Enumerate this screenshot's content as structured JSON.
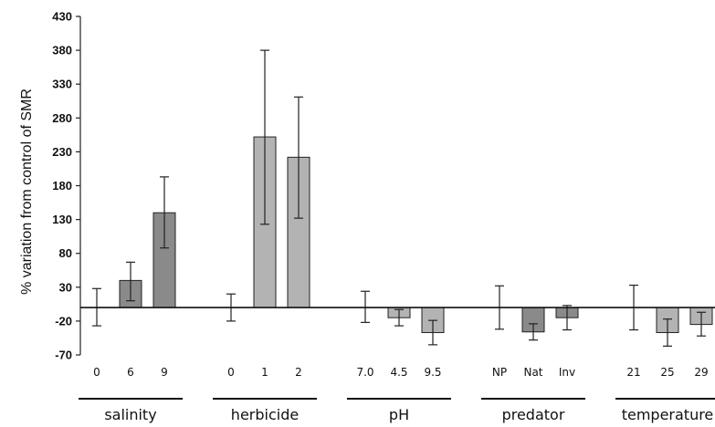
{
  "chart_data": {
    "type": "bar",
    "title": "",
    "ylabel": "% variation from control of SMR",
    "xlabel": "",
    "ylim": [
      -70,
      430
    ],
    "yticks": [
      430,
      380,
      330,
      280,
      230,
      180,
      130,
      80,
      30,
      -20,
      -70
    ],
    "baseline": 0,
    "grid": false,
    "legend": "none",
    "colors": {
      "white": "#ffffff",
      "light": "#b3b3b3",
      "dark": "#8a8a8a",
      "stroke": "#222222"
    },
    "groups": [
      {
        "name": "salinity",
        "bars": [
          {
            "label": "0",
            "value": 0,
            "err_low": -27,
            "err_high": 28,
            "fill": "white"
          },
          {
            "label": "6",
            "value": 40,
            "err_low": 10,
            "err_high": 67,
            "fill": "dark"
          },
          {
            "label": "9",
            "value": 140,
            "err_low": 88,
            "err_high": 193,
            "fill": "dark"
          }
        ]
      },
      {
        "name": "herbicide",
        "bars": [
          {
            "label": "0",
            "value": 0,
            "err_low": -20,
            "err_high": 20,
            "fill": "white"
          },
          {
            "label": "1",
            "value": 252,
            "err_low": 123,
            "err_high": 380,
            "fill": "light"
          },
          {
            "label": "2",
            "value": 222,
            "err_low": 132,
            "err_high": 311,
            "fill": "light"
          }
        ]
      },
      {
        "name": "pH",
        "bars": [
          {
            "label": "7.0",
            "value": 0,
            "err_low": -22,
            "err_high": 24,
            "fill": "white"
          },
          {
            "label": "4.5",
            "value": -15,
            "err_low": -27,
            "err_high": -3,
            "fill": "light"
          },
          {
            "label": "9.5",
            "value": -37,
            "err_low": -55,
            "err_high": -19,
            "fill": "light"
          }
        ]
      },
      {
        "name": "predator",
        "bars": [
          {
            "label": "NP",
            "value": 0,
            "err_low": -32,
            "err_high": 32,
            "fill": "white"
          },
          {
            "label": "Nat",
            "value": -36,
            "err_low": -48,
            "err_high": -24,
            "fill": "dark"
          },
          {
            "label": "Inv",
            "value": -15,
            "err_low": -33,
            "err_high": 3,
            "fill": "dark"
          }
        ]
      },
      {
        "name": "temperature",
        "bars": [
          {
            "label": "21",
            "value": 0,
            "err_low": -33,
            "err_high": 33,
            "fill": "white"
          },
          {
            "label": "25",
            "value": -37,
            "err_low": -57,
            "err_high": -17,
            "fill": "light"
          },
          {
            "label": "29",
            "value": -25,
            "err_low": -42,
            "err_high": -7,
            "fill": "light"
          }
        ]
      }
    ]
  }
}
